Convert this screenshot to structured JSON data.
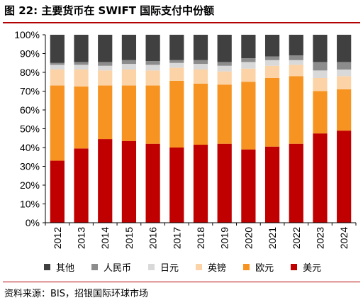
{
  "header": {
    "title": "图 22: 主要货币在 SWIFT 国际支付中份额"
  },
  "source": "资料来源：BIS，招银国际环球市场",
  "chart_data": {
    "type": "bar",
    "stacked": true,
    "orientation": "vertical",
    "title": "",
    "xlabel": "",
    "ylabel": "",
    "ylim": [
      0,
      100
    ],
    "y_ticks": [
      "0%",
      "10%",
      "20%",
      "30%",
      "40%",
      "50%",
      "60%",
      "70%",
      "80%",
      "90%",
      "100%"
    ],
    "categories": [
      "2012",
      "2013",
      "2014",
      "2015",
      "2016",
      "2017",
      "2018",
      "2019",
      "2020",
      "2021",
      "2022",
      "2023",
      "2024"
    ],
    "series": [
      {
        "name": "美元",
        "color": "#c00000",
        "values": [
          33,
          39.5,
          44.5,
          43.5,
          42,
          40,
          41.5,
          42,
          39,
          40.5,
          42,
          47.5,
          49
        ]
      },
      {
        "name": "欧元",
        "color": "#f79421",
        "values": [
          40,
          33,
          28.5,
          29.5,
          31,
          35.5,
          32.5,
          31.5,
          36,
          36.5,
          36,
          22.5,
          22
        ]
      },
      {
        "name": "英镑",
        "color": "#fbd3a6",
        "values": [
          8.5,
          9,
          8,
          8.5,
          8,
          7,
          7.5,
          7,
          7,
          6.5,
          6,
          7,
          7
        ]
      },
      {
        "name": "日元",
        "color": "#d9d9d9",
        "values": [
          2.5,
          2.5,
          2.5,
          3,
          3,
          2.5,
          3,
          3,
          3.5,
          3,
          2.5,
          4,
          3.5
        ]
      },
      {
        "name": "人民币",
        "color": "#8c8c8c",
        "values": [
          1,
          1.5,
          2,
          2,
          2,
          1.5,
          2,
          2,
          2,
          2,
          2.5,
          4.5,
          4
        ]
      },
      {
        "name": "其他",
        "color": "#404040",
        "values": [
          15,
          14.5,
          14.5,
          13.5,
          14,
          13.5,
          13.5,
          14.5,
          12.5,
          11.5,
          11,
          14.5,
          14.5
        ]
      }
    ],
    "legend_order": [
      "其他",
      "人民币",
      "日元",
      "英镑",
      "欧元",
      "美元"
    ],
    "legend_position": "bottom",
    "grid": false
  }
}
